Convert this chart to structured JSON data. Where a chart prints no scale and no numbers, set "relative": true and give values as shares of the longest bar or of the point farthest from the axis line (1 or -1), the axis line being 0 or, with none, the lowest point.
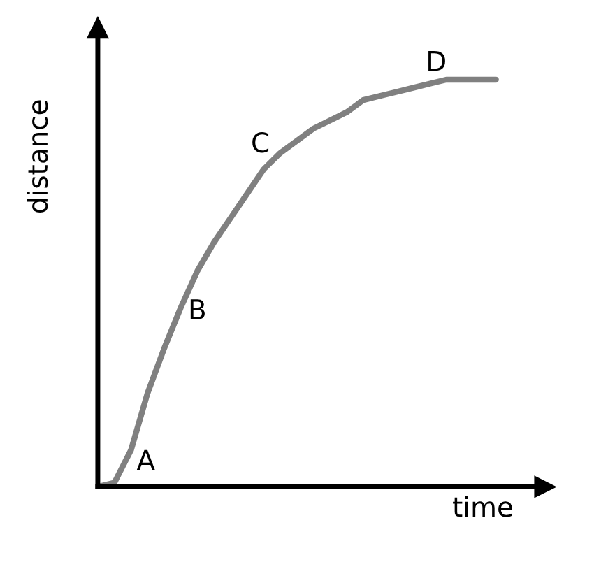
{
  "chart_data": {
    "type": "line",
    "relative": true,
    "xlabel": "time",
    "ylabel": "distance",
    "categories": [
      null,
      null,
      null,
      null,
      null,
      null,
      null,
      null,
      null,
      null,
      null,
      null,
      null,
      null,
      null,
      null,
      null,
      null,
      null,
      null,
      null,
      null,
      null,
      null,
      null
    ],
    "series": [
      {
        "color": "#808080",
        "values": [
          0,
          0.01,
          0.09,
          0.23,
          0.34,
          0.44,
          0.53,
          0.6,
          0.66,
          0.72,
          0.78,
          0.82,
          0.85,
          0.88,
          0.9,
          0.92,
          0.95,
          0.96,
          0.97,
          0.98,
          0.99,
          1.0,
          1.0,
          1.0,
          1.0
        ]
      }
    ],
    "annotations": [
      "A",
      "B",
      "C",
      "D"
    ],
    "legend": false,
    "marker": "none",
    "line_style": "solid"
  }
}
